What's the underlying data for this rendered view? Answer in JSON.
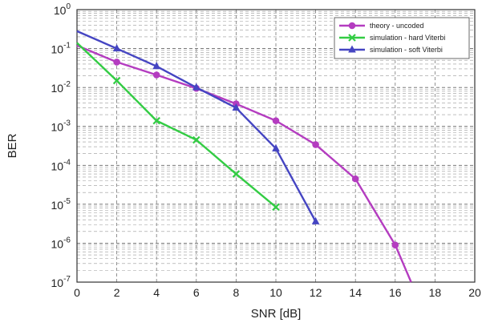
{
  "chart_data": {
    "type": "line",
    "title": "",
    "xlabel": "SNR [dB]",
    "ylabel": "BER",
    "xlim": [
      0,
      20
    ],
    "ylim": [
      1e-07,
      1
    ],
    "yscale": "log",
    "grid": true,
    "legend_position": "top-right",
    "x_ticks": [
      "0",
      "2",
      "4",
      "6",
      "8",
      "10",
      "12",
      "14",
      "16",
      "18",
      "20"
    ],
    "y_ticks": [
      {
        "base": "10",
        "exp": "0"
      },
      {
        "base": "10",
        "exp": "-1"
      },
      {
        "base": "10",
        "exp": "-2"
      },
      {
        "base": "10",
        "exp": "-3"
      },
      {
        "base": "10",
        "exp": "-4"
      },
      {
        "base": "10",
        "exp": "-5"
      },
      {
        "base": "10",
        "exp": "-6"
      },
      {
        "base": "10",
        "exp": "-7"
      }
    ],
    "series": [
      {
        "name": "theory - uncoded",
        "color": "#b43cc0",
        "marker": "circle",
        "x": [
          0,
          2,
          4,
          6,
          8,
          10,
          12,
          14,
          16,
          16.8
        ],
        "y": [
          0.12,
          0.045,
          0.021,
          0.0095,
          0.0038,
          0.0014,
          0.00034,
          4.5e-05,
          9e-07,
          1e-07
        ],
        "markers": [
          false,
          true,
          true,
          true,
          true,
          true,
          true,
          true,
          true,
          false
        ]
      },
      {
        "name": "simulation - hard Viterbi",
        "color": "#33cc44",
        "marker": "x",
        "x": [
          0,
          2,
          4,
          6,
          8,
          10
        ],
        "y": [
          0.14,
          0.015,
          0.0014,
          0.00045,
          6e-05,
          8.5e-06
        ],
        "markers": [
          false,
          true,
          true,
          true,
          true,
          true
        ]
      },
      {
        "name": "simulation - soft Viterbi",
        "color": "#4545c2",
        "marker": "triangle",
        "x": [
          0,
          2,
          4,
          6,
          8,
          10,
          12
        ],
        "y": [
          0.28,
          0.1,
          0.035,
          0.01,
          0.003,
          0.00027,
          3.6e-06
        ],
        "markers": [
          false,
          true,
          true,
          true,
          true,
          true,
          true
        ]
      }
    ]
  }
}
